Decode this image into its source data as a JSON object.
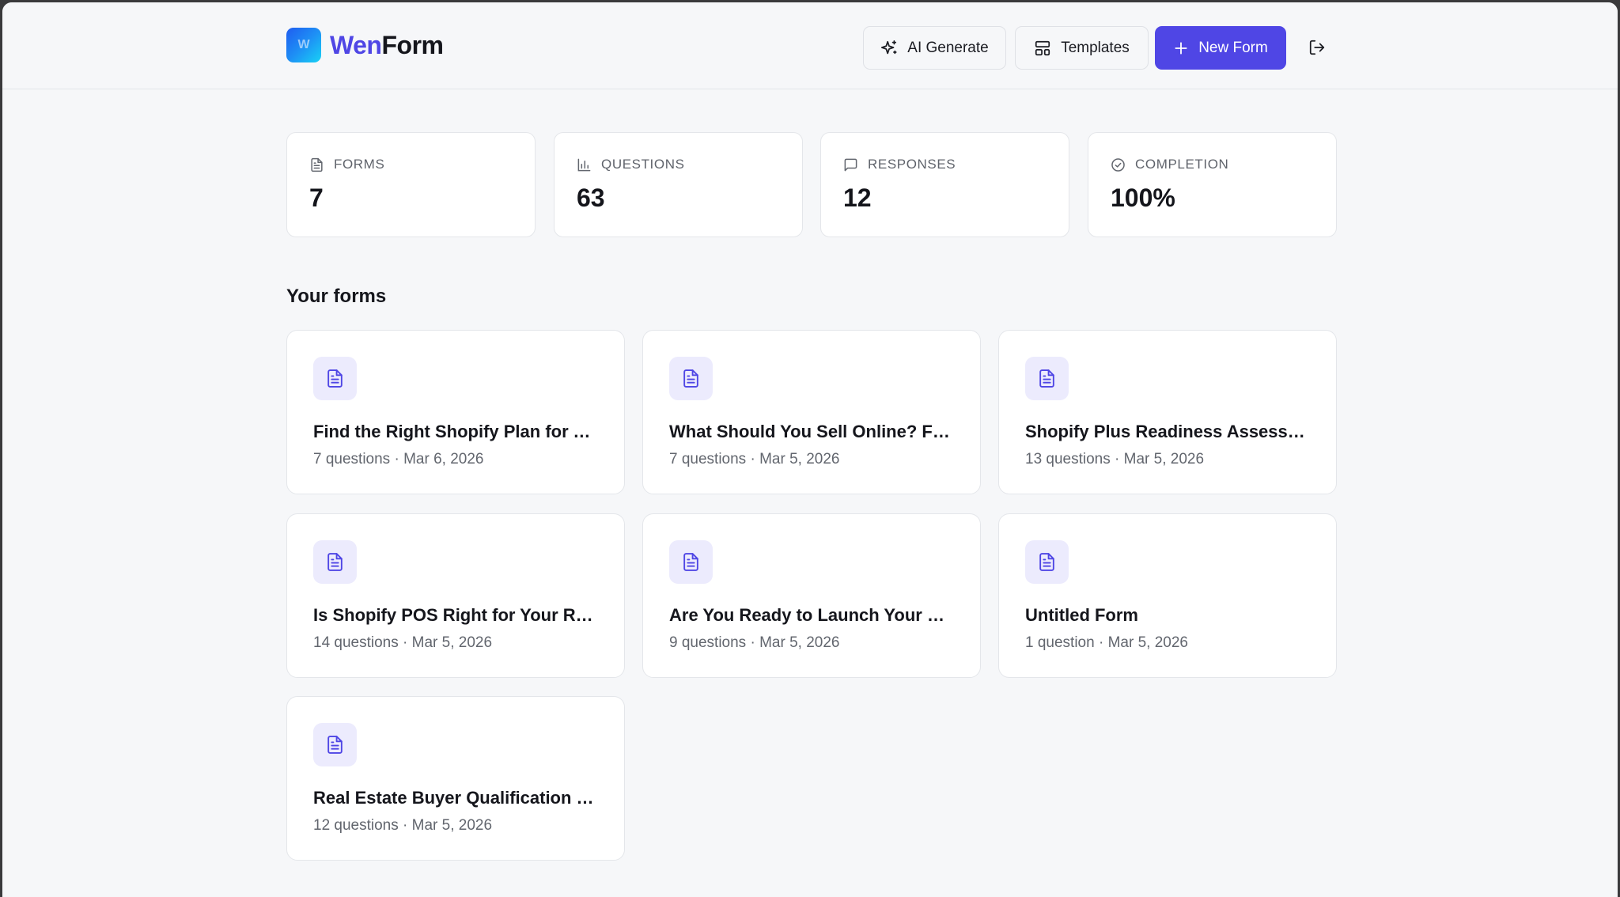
{
  "header": {
    "brand_part1": "Wen",
    "brand_part2": "Form",
    "logo_letter": "W",
    "ai_generate_label": "AI Generate",
    "templates_label": "Templates",
    "new_form_label": "New Form"
  },
  "stats": [
    {
      "label": "FORMS",
      "value": "7",
      "icon": "file-text-icon"
    },
    {
      "label": "QUESTIONS",
      "value": "63",
      "icon": "bar-chart-icon"
    },
    {
      "label": "RESPONSES",
      "value": "12",
      "icon": "message-square-icon"
    },
    {
      "label": "COMPLETION",
      "value": "100%",
      "icon": "check-circle-icon"
    }
  ],
  "forms_section": {
    "title": "Your forms",
    "forms": [
      {
        "title": "Find the Right Shopify Plan for Your Business",
        "meta": "7 questions · Mar 6, 2026"
      },
      {
        "title": "What Should You Sell Online? Find Your Niche",
        "meta": "7 questions · Mar 5, 2026"
      },
      {
        "title": "Shopify Plus Readiness Assessment",
        "meta": "13 questions · Mar 5, 2026"
      },
      {
        "title": "Is Shopify POS Right for Your Retail Store?",
        "meta": "14 questions · Mar 5, 2026"
      },
      {
        "title": "Are You Ready to Launch Your Online Store?",
        "meta": "9 questions · Mar 5, 2026"
      },
      {
        "title": "Untitled Form",
        "meta": "1 question · Mar 5, 2026"
      },
      {
        "title": "Real Estate Buyer Qualification Quiz",
        "meta": "12 questions · Mar 5, 2026"
      }
    ]
  },
  "colors": {
    "accent": "#4f46e5",
    "icon_bg": "#ecebfd",
    "background": "#f6f7f9"
  }
}
